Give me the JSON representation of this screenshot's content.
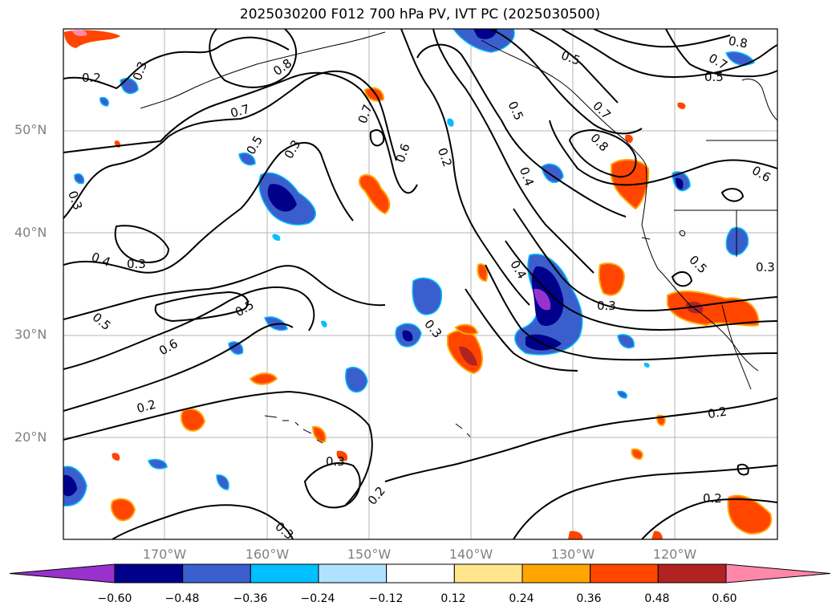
{
  "title": "2025030200 F012 700 hPa PV, IVT PC (2025030500)",
  "map": {
    "lat_labels": [
      "50°N",
      "40°N",
      "30°N",
      "20°N"
    ],
    "lon_labels": [
      "170°W",
      "160°W",
      "150°W",
      "140°W",
      "130°W",
      "120°W"
    ],
    "contour_labels": [
      "0.2",
      "0.3",
      "0.4",
      "0.5",
      "0.6",
      "0.7",
      "0.8"
    ]
  },
  "colorbar": {
    "ticks": [
      "−0.60",
      "−0.48",
      "−0.36",
      "−0.24",
      "−0.12",
      "0.12",
      "0.24",
      "0.36",
      "0.48",
      "0.60"
    ],
    "colors": [
      "#9932cc",
      "#00008b",
      "#3a5fcd",
      "#00bfff",
      "#b0e2ff",
      "#ffffff",
      "#ffe68c",
      "#ffa500",
      "#ff4500",
      "#b22222",
      "#ff88aa"
    ]
  }
}
